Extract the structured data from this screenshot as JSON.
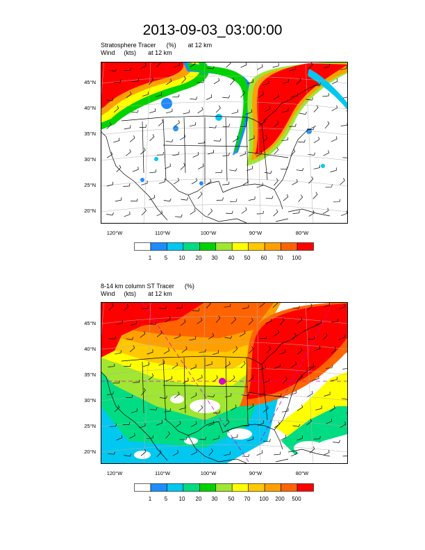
{
  "title": "2013-09-03_03:00:00",
  "panels": [
    {
      "name": "stratosphere-tracer",
      "title_left": "Stratosphere Tracer",
      "title_unit": "(%)",
      "title_level": "at   12 km",
      "subtitle_left": "Wind",
      "subtitle_unit": "(kts)",
      "subtitle_level": "at   12 km",
      "lat_labels": [
        "45°N",
        "40°N",
        "35°N",
        "30°N",
        "25°N",
        "20°N"
      ],
      "lon_labels": [
        "120°W",
        "110°W",
        "100°W",
        "90°W",
        "80°W"
      ],
      "colorbar_labels": [
        "1",
        "5",
        "10",
        "20",
        "30",
        "40",
        "50",
        "60",
        "70",
        "100"
      ]
    },
    {
      "name": "column-st-tracer",
      "title_left": "8-14 km column ST Tracer",
      "title_unit": "(%)",
      "title_level": "",
      "subtitle_left": "Wind",
      "subtitle_unit": "(kts)",
      "subtitle_level": "at   12 km",
      "lat_labels": [
        "45°N",
        "40°N",
        "35°N",
        "30°N",
        "25°N",
        "20°N"
      ],
      "lon_labels": [
        "120°W",
        "110°W",
        "100°W",
        "90°W",
        "80°W"
      ],
      "colorbar_labels": [
        "1",
        "5",
        "10",
        "20",
        "30",
        "50",
        "70",
        "100",
        "200",
        "500"
      ]
    }
  ],
  "colorbar_colors": [
    "#ffffff",
    "#1e8cff",
    "#00c8f0",
    "#00dc82",
    "#00d200",
    "#a0e632",
    "#ffff00",
    "#ffc800",
    "#ffa000",
    "#ff6400",
    "#ff0000"
  ],
  "colors": {
    "country_outline": "#000000",
    "frame": "#000000",
    "wind_barb": "#000000",
    "graticule": "#b0b0b0",
    "guide_line": "#d400d4"
  }
}
